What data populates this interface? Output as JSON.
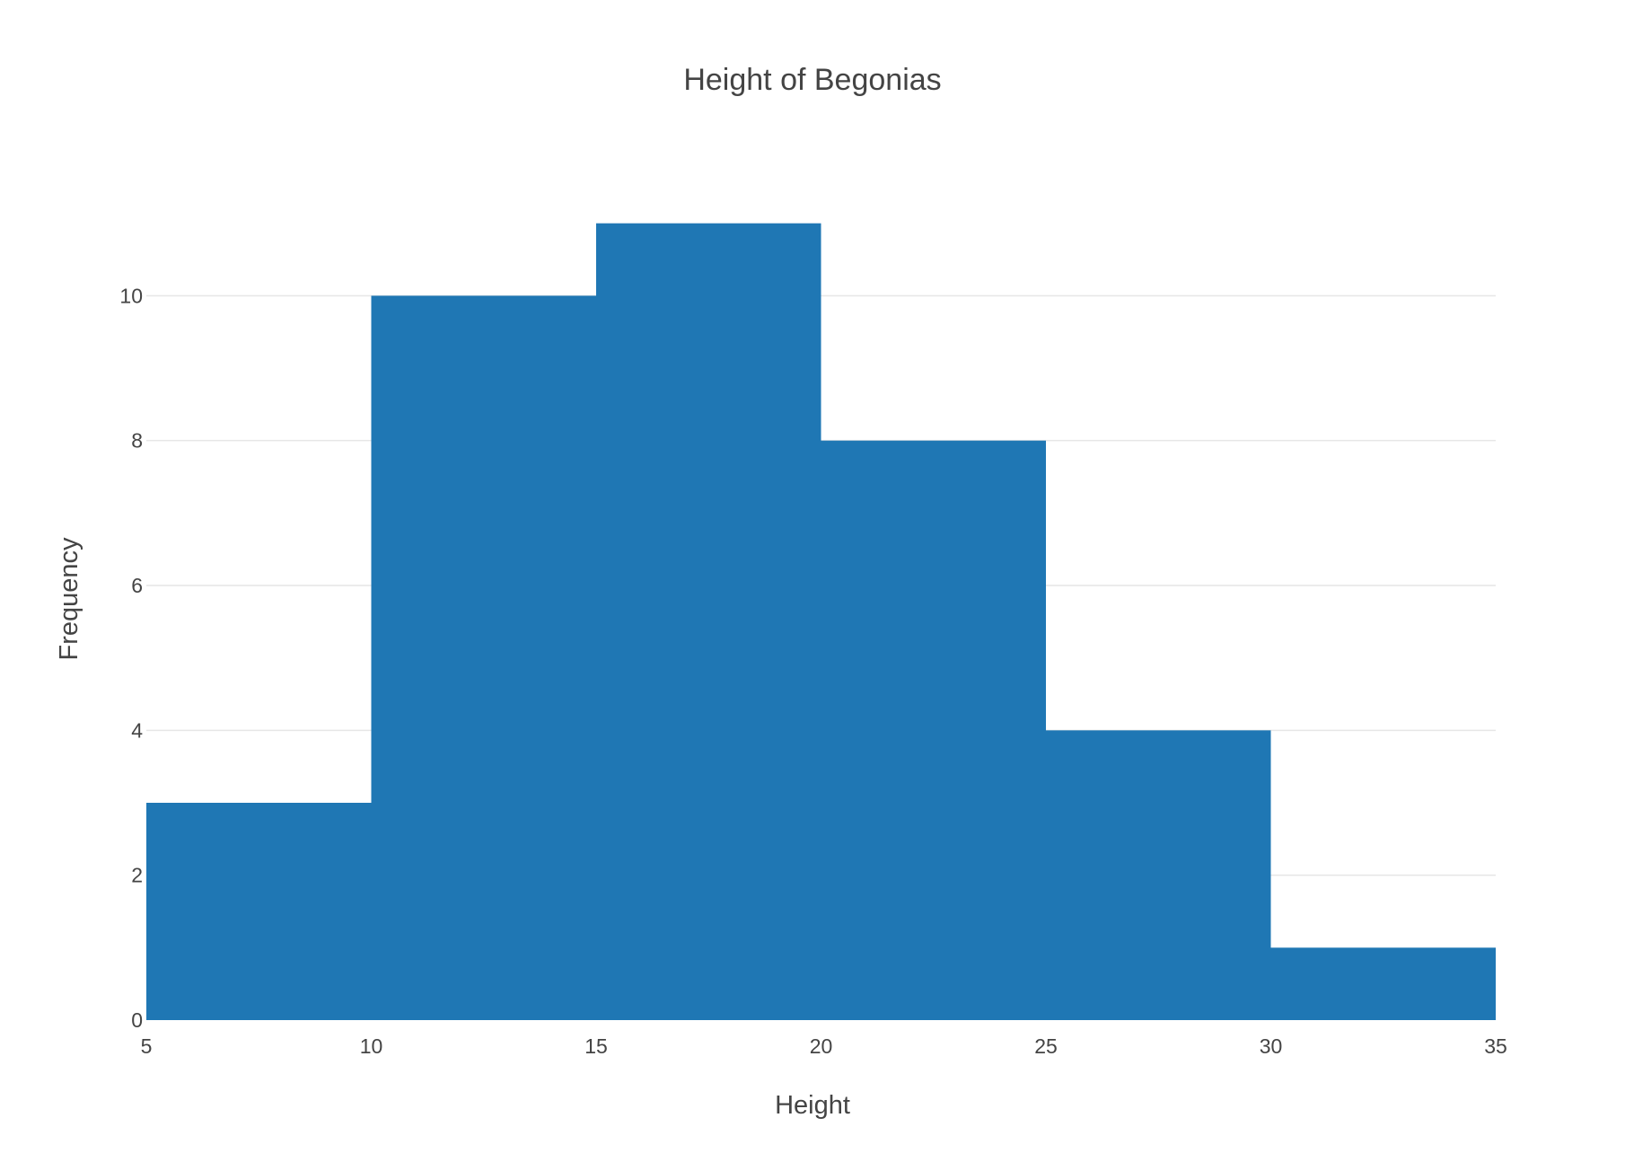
{
  "chart_data": {
    "type": "bar",
    "title": "Height of Begonias",
    "xlabel": "Height",
    "ylabel": "Frequency",
    "bins": [
      {
        "start": 5,
        "end": 10,
        "count": 3
      },
      {
        "start": 10,
        "end": 15,
        "count": 10
      },
      {
        "start": 15,
        "end": 20,
        "count": 11
      },
      {
        "start": 20,
        "end": 25,
        "count": 8
      },
      {
        "start": 25,
        "end": 30,
        "count": 4
      },
      {
        "start": 30,
        "end": 35,
        "count": 1
      }
    ],
    "xlim": [
      5,
      35
    ],
    "ylim": [
      0,
      12
    ],
    "x_ticks": [
      5,
      10,
      15,
      20,
      25,
      30,
      35
    ],
    "y_ticks": [
      0,
      2,
      4,
      6,
      8,
      10
    ],
    "grid": true,
    "bar_color": "#1f77b4"
  }
}
